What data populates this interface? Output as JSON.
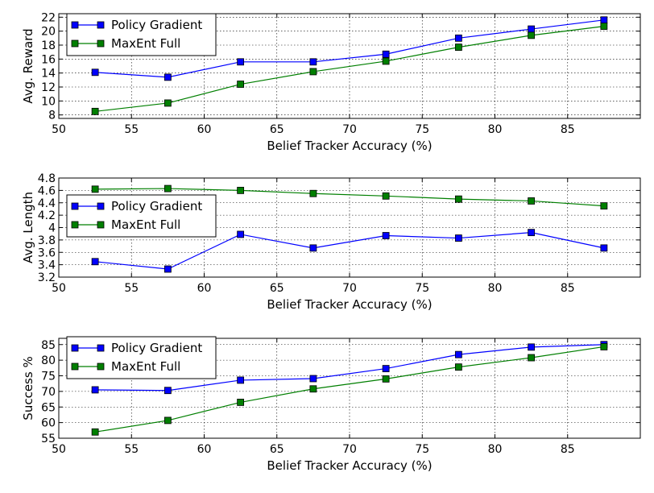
{
  "chart_data": [
    {
      "type": "line",
      "xlabel": "Belief Tracker Accuracy (%)",
      "ylabel": "Avg. Reward",
      "xlim": [
        50,
        90
      ],
      "ylim": [
        7.5,
        22.5
      ],
      "xticks": [
        50,
        55,
        60,
        65,
        70,
        75,
        80,
        85
      ],
      "yticks": [
        8,
        10,
        12,
        14,
        16,
        18,
        20,
        22
      ],
      "grid": true,
      "legend_position": "top-left",
      "x": [
        52.5,
        57.5,
        62.5,
        67.5,
        72.5,
        77.5,
        82.5,
        87.5
      ],
      "series": [
        {
          "name": "Policy Gradient",
          "color": "#0000ff",
          "values": [
            14.1,
            13.4,
            15.6,
            15.6,
            16.7,
            19.0,
            20.3,
            21.6
          ]
        },
        {
          "name": "MaxEnt Full",
          "color": "#007f00",
          "values": [
            8.5,
            9.7,
            12.4,
            14.2,
            15.7,
            17.7,
            19.4,
            20.7
          ]
        }
      ]
    },
    {
      "type": "line",
      "xlabel": "Belief Tracker Accuracy (%)",
      "ylabel": "Avg. Length",
      "xlim": [
        50,
        90
      ],
      "ylim": [
        3.2,
        4.8
      ],
      "xticks": [
        50,
        55,
        60,
        65,
        70,
        75,
        80,
        85
      ],
      "yticks": [
        3.2,
        3.4,
        3.6,
        3.8,
        4.0,
        4.2,
        4.4,
        4.6,
        4.8
      ],
      "grid": true,
      "legend_position": "center-left",
      "x": [
        52.5,
        57.5,
        62.5,
        67.5,
        72.5,
        77.5,
        82.5,
        87.5
      ],
      "series": [
        {
          "name": "Policy Gradient",
          "color": "#0000ff",
          "values": [
            3.45,
            3.33,
            3.89,
            3.67,
            3.87,
            3.83,
            3.92,
            3.67
          ]
        },
        {
          "name": "MaxEnt Full",
          "color": "#007f00",
          "values": [
            4.62,
            4.63,
            4.6,
            4.55,
            4.51,
            4.46,
            4.43,
            4.35
          ]
        }
      ]
    },
    {
      "type": "line",
      "xlabel": "Belief Tracker Accuracy (%)",
      "ylabel": "Success %",
      "xlim": [
        50,
        90
      ],
      "ylim": [
        55,
        87
      ],
      "xticks": [
        50,
        55,
        60,
        65,
        70,
        75,
        80,
        85
      ],
      "yticks": [
        55,
        60,
        65,
        70,
        75,
        80,
        85
      ],
      "grid": true,
      "legend_position": "top-left",
      "x": [
        52.5,
        57.5,
        62.5,
        67.5,
        72.5,
        77.5,
        82.5,
        87.5
      ],
      "series": [
        {
          "name": "Policy Gradient",
          "color": "#0000ff",
          "values": [
            70.5,
            70.3,
            73.6,
            74.1,
            77.3,
            81.8,
            84.2,
            85.0
          ]
        },
        {
          "name": "MaxEnt Full",
          "color": "#007f00",
          "values": [
            57.0,
            60.7,
            66.5,
            70.8,
            74.0,
            77.8,
            80.8,
            84.3
          ]
        }
      ]
    }
  ]
}
